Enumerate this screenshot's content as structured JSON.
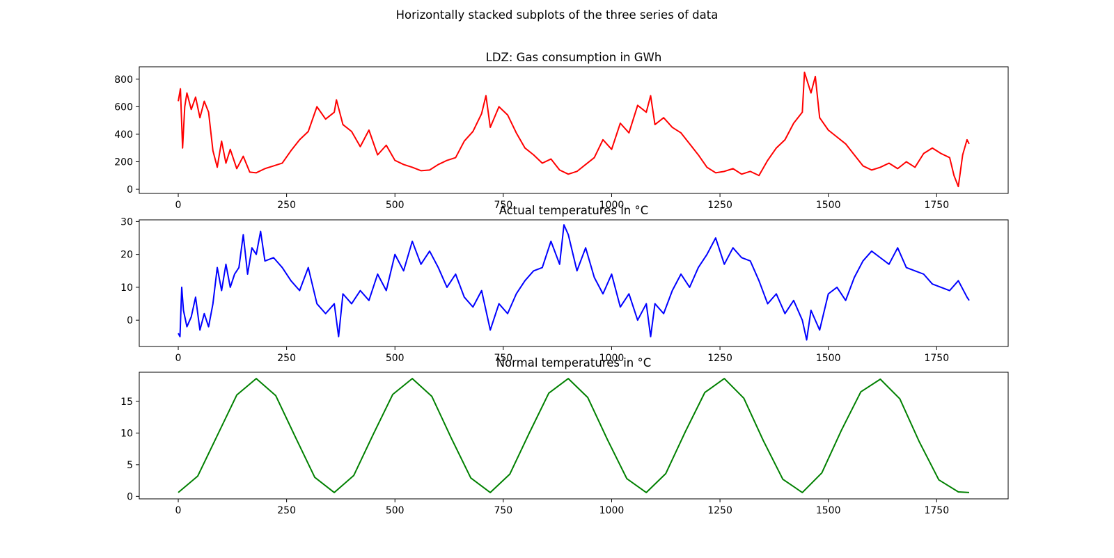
{
  "figure": {
    "suptitle": "Horizontally stacked subplots of the three series of data"
  },
  "chart_data": [
    {
      "type": "line",
      "title": "LDZ: Gas consumption in GWh",
      "xlabel": "",
      "ylabel": "",
      "color": "#ff0000",
      "xlim": [
        -90,
        1915
      ],
      "ylim": [
        -30,
        890
      ],
      "xticks": [
        0,
        250,
        500,
        750,
        1000,
        1250,
        1500,
        1750
      ],
      "xtick_labels": [
        "0",
        "250",
        "500",
        "750",
        "1000",
        "1250",
        "1500",
        "1750"
      ],
      "yticks": [
        0,
        200,
        400,
        600,
        800
      ],
      "ytick_labels": [
        "0",
        "200",
        "400",
        "600",
        "800"
      ],
      "grid": false,
      "series": [
        {
          "x": [
            0,
            5,
            10,
            15,
            20,
            30,
            40,
            50,
            60,
            70,
            80,
            90,
            100,
            110,
            120,
            135,
            150,
            165,
            180,
            200,
            220,
            240,
            260,
            280,
            300,
            320,
            340,
            360,
            365,
            380,
            400,
            420,
            440,
            460,
            480,
            500,
            520,
            540,
            560,
            580,
            600,
            620,
            640,
            660,
            680,
            700,
            710,
            720,
            740,
            760,
            780,
            800,
            820,
            840,
            860,
            880,
            900,
            920,
            940,
            960,
            980,
            1000,
            1020,
            1040,
            1060,
            1080,
            1090,
            1100,
            1120,
            1140,
            1160,
            1180,
            1200,
            1220,
            1240,
            1260,
            1280,
            1300,
            1320,
            1340,
            1360,
            1380,
            1400,
            1420,
            1440,
            1445,
            1460,
            1470,
            1480,
            1500,
            1520,
            1540,
            1560,
            1580,
            1600,
            1620,
            1640,
            1660,
            1680,
            1700,
            1720,
            1740,
            1760,
            1780,
            1790,
            1800,
            1810,
            1820,
            1825
          ],
          "y": [
            640,
            730,
            300,
            600,
            700,
            580,
            670,
            520,
            640,
            560,
            280,
            160,
            350,
            190,
            290,
            150,
            240,
            125,
            120,
            150,
            170,
            190,
            280,
            360,
            420,
            600,
            510,
            560,
            650,
            470,
            420,
            310,
            430,
            250,
            320,
            210,
            180,
            160,
            135,
            140,
            180,
            210,
            230,
            350,
            420,
            550,
            680,
            450,
            600,
            540,
            410,
            300,
            250,
            190,
            220,
            140,
            110,
            130,
            180,
            230,
            360,
            290,
            480,
            410,
            610,
            560,
            680,
            470,
            520,
            450,
            410,
            330,
            250,
            160,
            120,
            130,
            150,
            110,
            130,
            100,
            210,
            300,
            360,
            480,
            560,
            850,
            700,
            820,
            520,
            430,
            380,
            330,
            250,
            170,
            140,
            160,
            190,
            150,
            200,
            160,
            260,
            300,
            260,
            230,
            100,
            20,
            250,
            360,
            330
          ]
        }
      ]
    },
    {
      "type": "line",
      "title": "Actual temperatures in °C",
      "xlabel": "",
      "ylabel": "",
      "color": "#0000ff",
      "xlim": [
        -90,
        1915
      ],
      "ylim": [
        -8,
        30.5
      ],
      "xticks": [
        0,
        250,
        500,
        750,
        1000,
        1250,
        1500,
        1750
      ],
      "xtick_labels": [
        "0",
        "250",
        "500",
        "750",
        "1000",
        "1250",
        "1500",
        "1750"
      ],
      "yticks": [
        0,
        10,
        20,
        30
      ],
      "ytick_labels": [
        "0",
        "10",
        "20",
        "30"
      ],
      "grid": false,
      "series": [
        {
          "x": [
            0,
            4,
            8,
            12,
            20,
            30,
            40,
            50,
            60,
            70,
            80,
            90,
            100,
            110,
            120,
            130,
            140,
            150,
            160,
            170,
            180,
            190,
            200,
            220,
            240,
            260,
            280,
            300,
            320,
            340,
            360,
            370,
            380,
            400,
            420,
            440,
            460,
            480,
            500,
            520,
            540,
            560,
            580,
            600,
            620,
            640,
            660,
            680,
            700,
            720,
            740,
            760,
            780,
            800,
            820,
            840,
            860,
            880,
            890,
            900,
            920,
            940,
            960,
            980,
            1000,
            1020,
            1040,
            1060,
            1080,
            1090,
            1100,
            1120,
            1140,
            1160,
            1180,
            1200,
            1220,
            1240,
            1260,
            1280,
            1300,
            1320,
            1340,
            1360,
            1380,
            1400,
            1420,
            1440,
            1450,
            1460,
            1480,
            1500,
            1520,
            1540,
            1560,
            1580,
            1600,
            1620,
            1640,
            1660,
            1680,
            1700,
            1720,
            1740,
            1760,
            1780,
            1800,
            1820,
            1825
          ],
          "y": [
            -4,
            -5,
            10,
            3,
            -2,
            1,
            7,
            -3,
            2,
            -2,
            5,
            16,
            9,
            17,
            10,
            14,
            16,
            26,
            14,
            22,
            20,
            27,
            18,
            19,
            16,
            12,
            9,
            16,
            5,
            2,
            5,
            -5,
            8,
            5,
            9,
            6,
            14,
            9,
            20,
            15,
            24,
            17,
            21,
            16,
            10,
            14,
            7,
            4,
            9,
            -3,
            5,
            2,
            8,
            12,
            15,
            16,
            24,
            17,
            29,
            26,
            15,
            22,
            13,
            8,
            14,
            4,
            8,
            0,
            5,
            -5,
            5,
            2,
            9,
            14,
            10,
            16,
            20,
            25,
            17,
            22,
            19,
            18,
            12,
            5,
            8,
            2,
            6,
            0,
            -6,
            3,
            -3,
            8,
            10,
            6,
            13,
            18,
            21,
            19,
            17,
            22,
            16,
            15,
            14,
            11,
            10,
            9,
            12,
            7,
            6
          ]
        }
      ]
    },
    {
      "type": "line",
      "title": "Normal temperatures in °C",
      "xlabel": "",
      "ylabel": "",
      "color": "#008000",
      "xlim": [
        -90,
        1915
      ],
      "ylim": [
        -0.4,
        19.6
      ],
      "xticks": [
        0,
        250,
        500,
        750,
        1000,
        1250,
        1500,
        1750
      ],
      "xtick_labels": [
        "0",
        "250",
        "500",
        "750",
        "1000",
        "1250",
        "1500",
        "1750"
      ],
      "yticks": [
        0,
        5,
        10,
        15
      ],
      "ytick_labels": [
        "0",
        "5",
        "10",
        "15"
      ],
      "grid": false,
      "series": [
        {
          "x": [
            0,
            45,
            90,
            135,
            180,
            225,
            270,
            315,
            360,
            405,
            450,
            495,
            540,
            585,
            630,
            675,
            720,
            765,
            810,
            855,
            900,
            945,
            990,
            1035,
            1080,
            1125,
            1170,
            1215,
            1260,
            1305,
            1350,
            1395,
            1440,
            1485,
            1530,
            1575,
            1620,
            1665,
            1710,
            1755,
            1800,
            1825
          ],
          "y": [
            0.6,
            3.2,
            9.6,
            16.0,
            18.6,
            15.9,
            9.4,
            3.0,
            0.6,
            3.3,
            9.8,
            16.1,
            18.6,
            15.8,
            9.2,
            2.9,
            0.6,
            3.5,
            10.0,
            16.3,
            18.6,
            15.6,
            9.0,
            2.8,
            0.6,
            3.6,
            10.2,
            16.4,
            18.6,
            15.5,
            8.8,
            2.7,
            0.6,
            3.7,
            10.4,
            16.5,
            18.5,
            15.4,
            8.6,
            2.6,
            0.7,
            0.6
          ]
        }
      ]
    }
  ]
}
